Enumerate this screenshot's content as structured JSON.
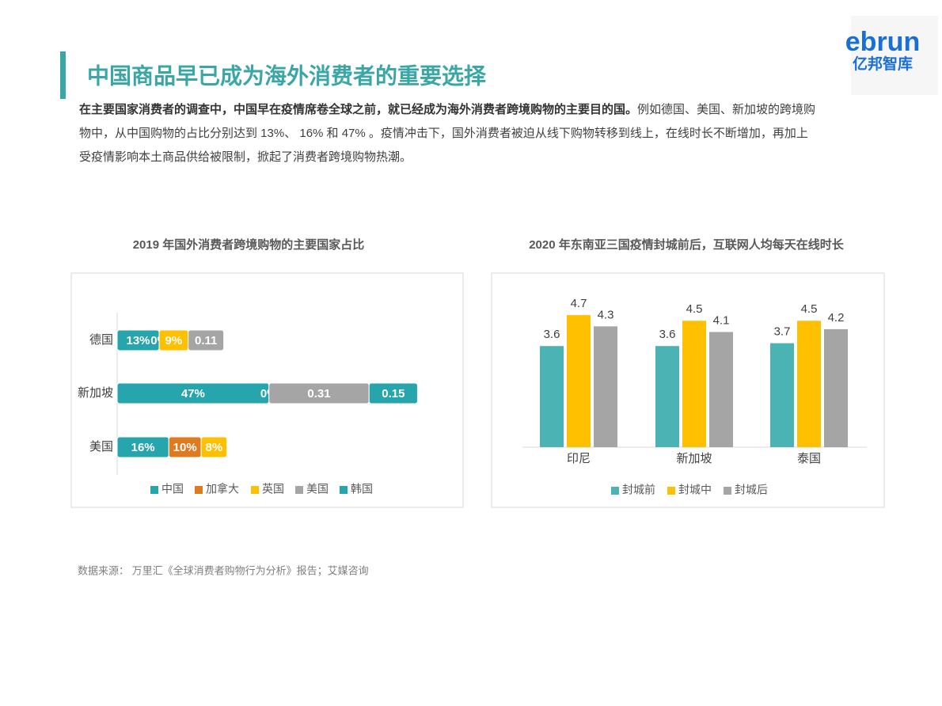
{
  "header": {
    "title": "中国商品早已成为海外消费者的重要选择",
    "logo_top": "ebrun",
    "logo_bottom": "亿邦智库"
  },
  "paragraph": {
    "bold": "在主要国家消费者的调查中，中国早在疫情席卷全球之前，就已经成为海外消费者跨境购物的主要目的国。",
    "text": "例如德国、美国、新加坡的跨境购物中，从中国购物的占比分别达到 13%、 16% 和 47% 。疫情冲击下，国外消费者被迫从线下购物转移到线上，在线时长不断增加，再加上受疫情影响本土商品供给被限制，掀起了消费者跨境购物热潮。"
  },
  "source": "数据来源： 万里汇《全球消费者购物行为分析》报告；艾媒咨询",
  "chart_data": [
    {
      "type": "bar",
      "orientation": "horizontal",
      "stacked": true,
      "title": "2019 年国外消费者跨境购物的主要国家占比",
      "categories": [
        "德国",
        "新加坡",
        "美国"
      ],
      "series": [
        {
          "name": "中国",
          "color": "#26a5ad",
          "values": [
            13,
            47,
            16
          ],
          "value_labels": [
            "13%",
            "47%",
            "16%"
          ]
        },
        {
          "name": "加拿大",
          "color": "#e07a1f",
          "values": [
            0,
            0,
            10
          ],
          "value_labels": [
            "0%",
            "0%",
            "10%"
          ]
        },
        {
          "name": "英国",
          "color": "#ffc000",
          "values": [
            9,
            null,
            8
          ],
          "value_labels": [
            "9%",
            null,
            "8%"
          ]
        },
        {
          "name": "美国",
          "color": "#a5a5a5",
          "values": [
            11,
            31,
            null
          ],
          "value_labels": [
            "0.11",
            "0.31",
            null
          ]
        },
        {
          "name": "韩国",
          "color": "#26a5ad",
          "values": [
            null,
            15,
            null
          ],
          "value_labels": [
            null,
            "0.15",
            null
          ]
        }
      ],
      "legend": "bottom"
    },
    {
      "type": "bar",
      "orientation": "vertical",
      "stacked": false,
      "title": "2020 年东南亚三国疫情封城前后，互联网人均每天在线时长",
      "categories": [
        "印尼",
        "新加坡",
        "泰国"
      ],
      "series": [
        {
          "name": "封城前",
          "color": "#4bb3b3",
          "values": [
            3.6,
            3.6,
            3.7
          ]
        },
        {
          "name": "封城中",
          "color": "#ffc000",
          "values": [
            4.7,
            4.5,
            4.5
          ]
        },
        {
          "name": "封城后",
          "color": "#a5a5a5",
          "values": [
            4.3,
            4.1,
            4.2
          ]
        }
      ],
      "legend": "bottom"
    }
  ]
}
